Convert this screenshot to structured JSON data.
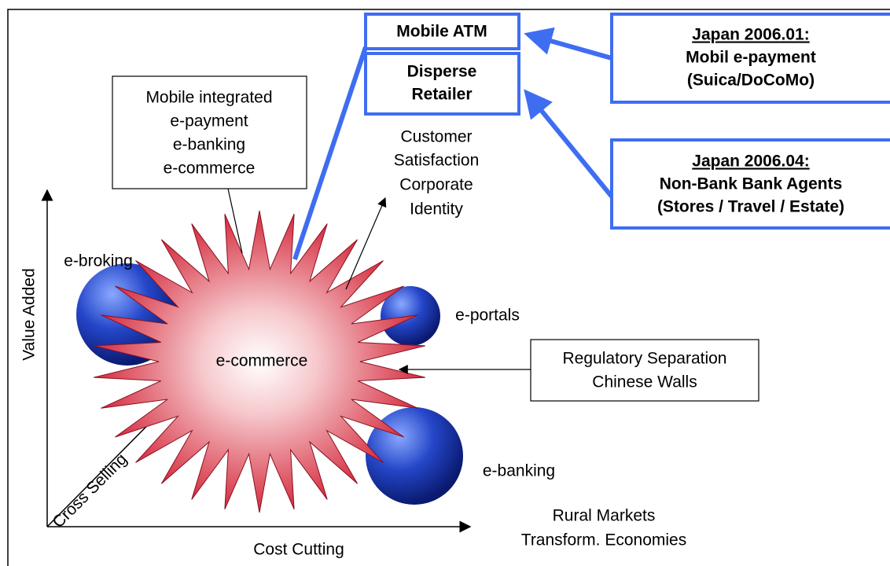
{
  "boxes": {
    "mobile_atm": "Mobile ATM",
    "disperse_retailer": [
      "Disperse",
      "Retailer"
    ],
    "japan_1": {
      "heading": "Japan 2006.01:",
      "lines": [
        "Mobil e-payment",
        "(Suica/DoCoMo)"
      ]
    },
    "japan_2": {
      "heading": "Japan 2006.04:",
      "lines": [
        "Non-Bank Bank Agents",
        "(Stores / Travel / Estate)"
      ]
    },
    "mobile_integrated": [
      "Mobile integrated",
      "e-payment",
      "e-banking",
      "e-commerce"
    ],
    "regulatory": [
      "Regulatory Separation",
      "Chinese Walls"
    ]
  },
  "labels": {
    "customer": [
      "Customer",
      "Satisfaction",
      "Corporate",
      "Identity"
    ],
    "e_broking": "e-broking",
    "e_portals": "e-portals",
    "e_banking": "e-banking",
    "e_commerce": "e-commerce",
    "rural": [
      "Rural Markets",
      "Transform. Economies"
    ]
  },
  "axes": {
    "y": "Value Added",
    "x": "Cost Cutting",
    "z": "Cross Selling"
  }
}
